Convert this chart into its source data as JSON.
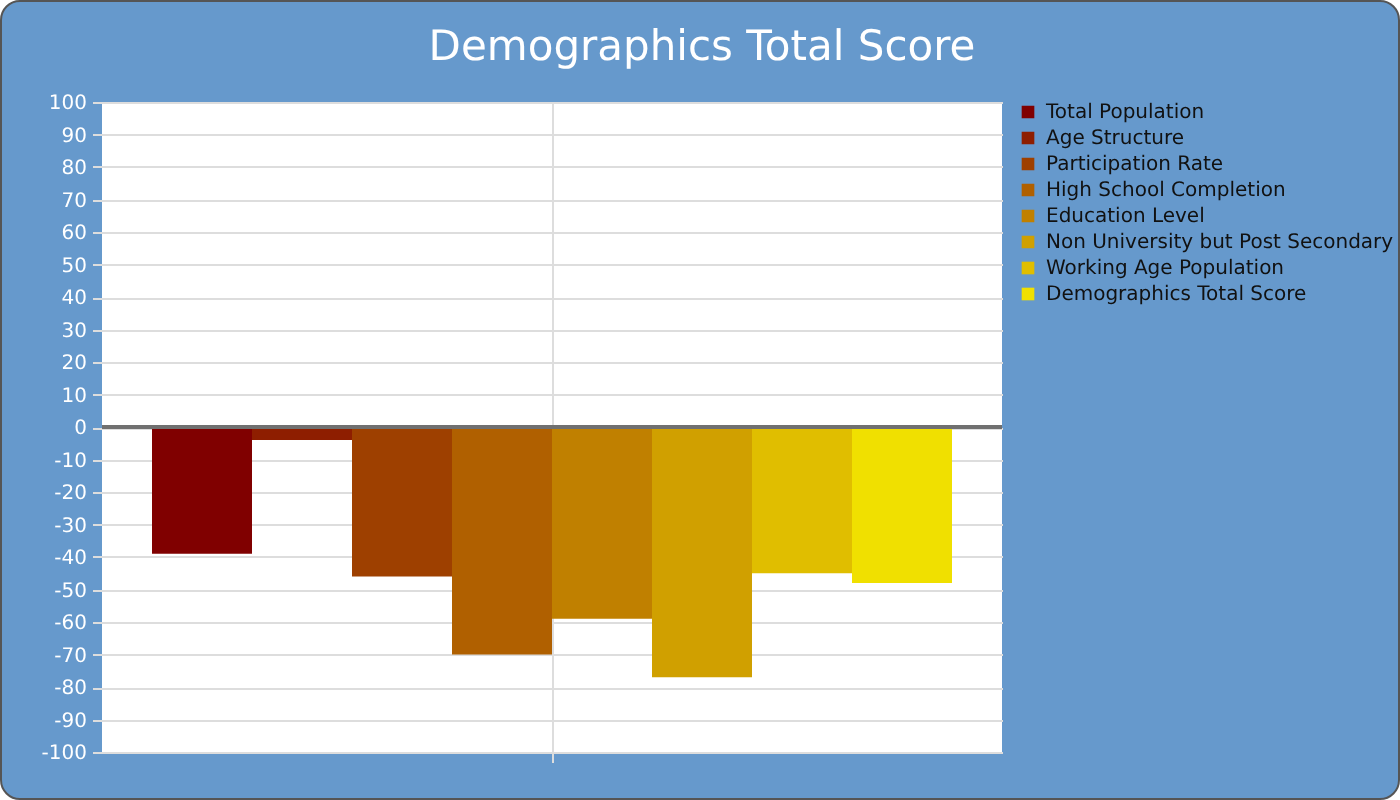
{
  "chart_data": {
    "type": "bar",
    "title": "Demographics Total Score",
    "categories": [
      null
    ],
    "series": [
      {
        "name": "Total Population",
        "color": "#800000",
        "values": [
          -39
        ]
      },
      {
        "name": "Age Structure",
        "color": "#8e1e00",
        "values": [
          -4
        ]
      },
      {
        "name": "Participation Rate",
        "color": "#9e4000",
        "values": [
          -46
        ]
      },
      {
        "name": "High School Completion",
        "color": "#b06000",
        "values": [
          -70
        ]
      },
      {
        "name": "Education Level",
        "color": "#c08000",
        "values": [
          -59
        ]
      },
      {
        "name": "Non University but Post Secondary",
        "color": "#d0a000",
        "values": [
          -77
        ]
      },
      {
        "name": "Working Age Population",
        "color": "#e0be00",
        "values": [
          -45
        ]
      },
      {
        "name": "Demographics Total Score",
        "color": "#f0e000",
        "values": [
          -48
        ]
      }
    ],
    "ylim": [
      -100,
      100
    ],
    "yticks": [
      -100,
      -90,
      -80,
      -70,
      -60,
      -50,
      -40,
      -30,
      -20,
      -10,
      0,
      10,
      20,
      30,
      40,
      50,
      60,
      70,
      80,
      90,
      100
    ],
    "ref_lines": [
      {
        "axis": "y",
        "value": 0,
        "color": "#707070"
      }
    ],
    "grid": true,
    "legend": "right"
  }
}
